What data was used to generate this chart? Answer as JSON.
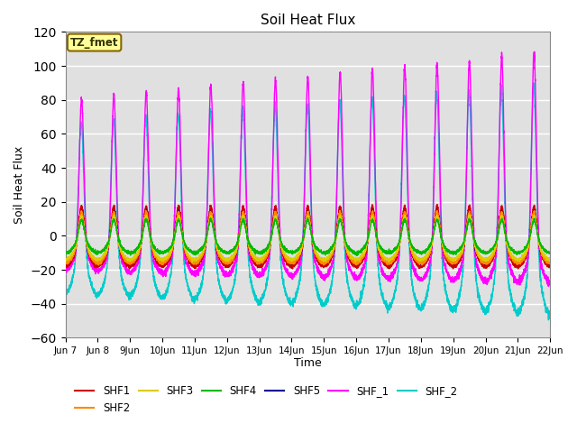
{
  "title": "Soil Heat Flux",
  "ylabel": "Soil Heat Flux",
  "xlabel": "Time",
  "ylim": [
    -60,
    120
  ],
  "yticks": [
    -60,
    -40,
    -20,
    0,
    20,
    40,
    60,
    80,
    100,
    120
  ],
  "background_color": "#e0e0e0",
  "series_colors": {
    "SHF1": "#cc0000",
    "SHF2": "#ff8800",
    "SHF3": "#ddcc00",
    "SHF4": "#00bb00",
    "SHF5": "#000099",
    "SHF_1": "#ff00ff",
    "SHF_2": "#00cccc"
  },
  "tz_label": "TZ_fmet",
  "tz_bg": "#ffff99",
  "tz_border": "#886600",
  "n_days": 15,
  "start_day": 7,
  "points_per_day": 288
}
